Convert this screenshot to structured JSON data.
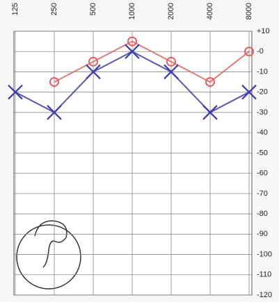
{
  "chart_data": {
    "type": "line",
    "categories": [
      "125",
      "250",
      "500",
      "1000",
      "2000",
      "4000",
      "8000"
    ],
    "series": [
      {
        "color": "#e06060",
        "marker": "circle",
        "values": [
          null,
          -15,
          -5,
          5,
          -5,
          -15,
          0
        ]
      },
      {
        "color": "#3a3aa8",
        "marker": "cross",
        "values": [
          -20,
          -30,
          -10,
          0,
          -10,
          -30,
          -20
        ]
      }
    ],
    "ylim": [
      -120,
      10
    ],
    "yticks": [
      {
        "value": 10,
        "label": "+10"
      },
      {
        "value": 0,
        "label": "-0"
      },
      -10,
      -20,
      -30,
      -40,
      -50,
      -60,
      -70,
      -80,
      -90,
      -100,
      -110,
      -120
    ],
    "grid": true
  }
}
